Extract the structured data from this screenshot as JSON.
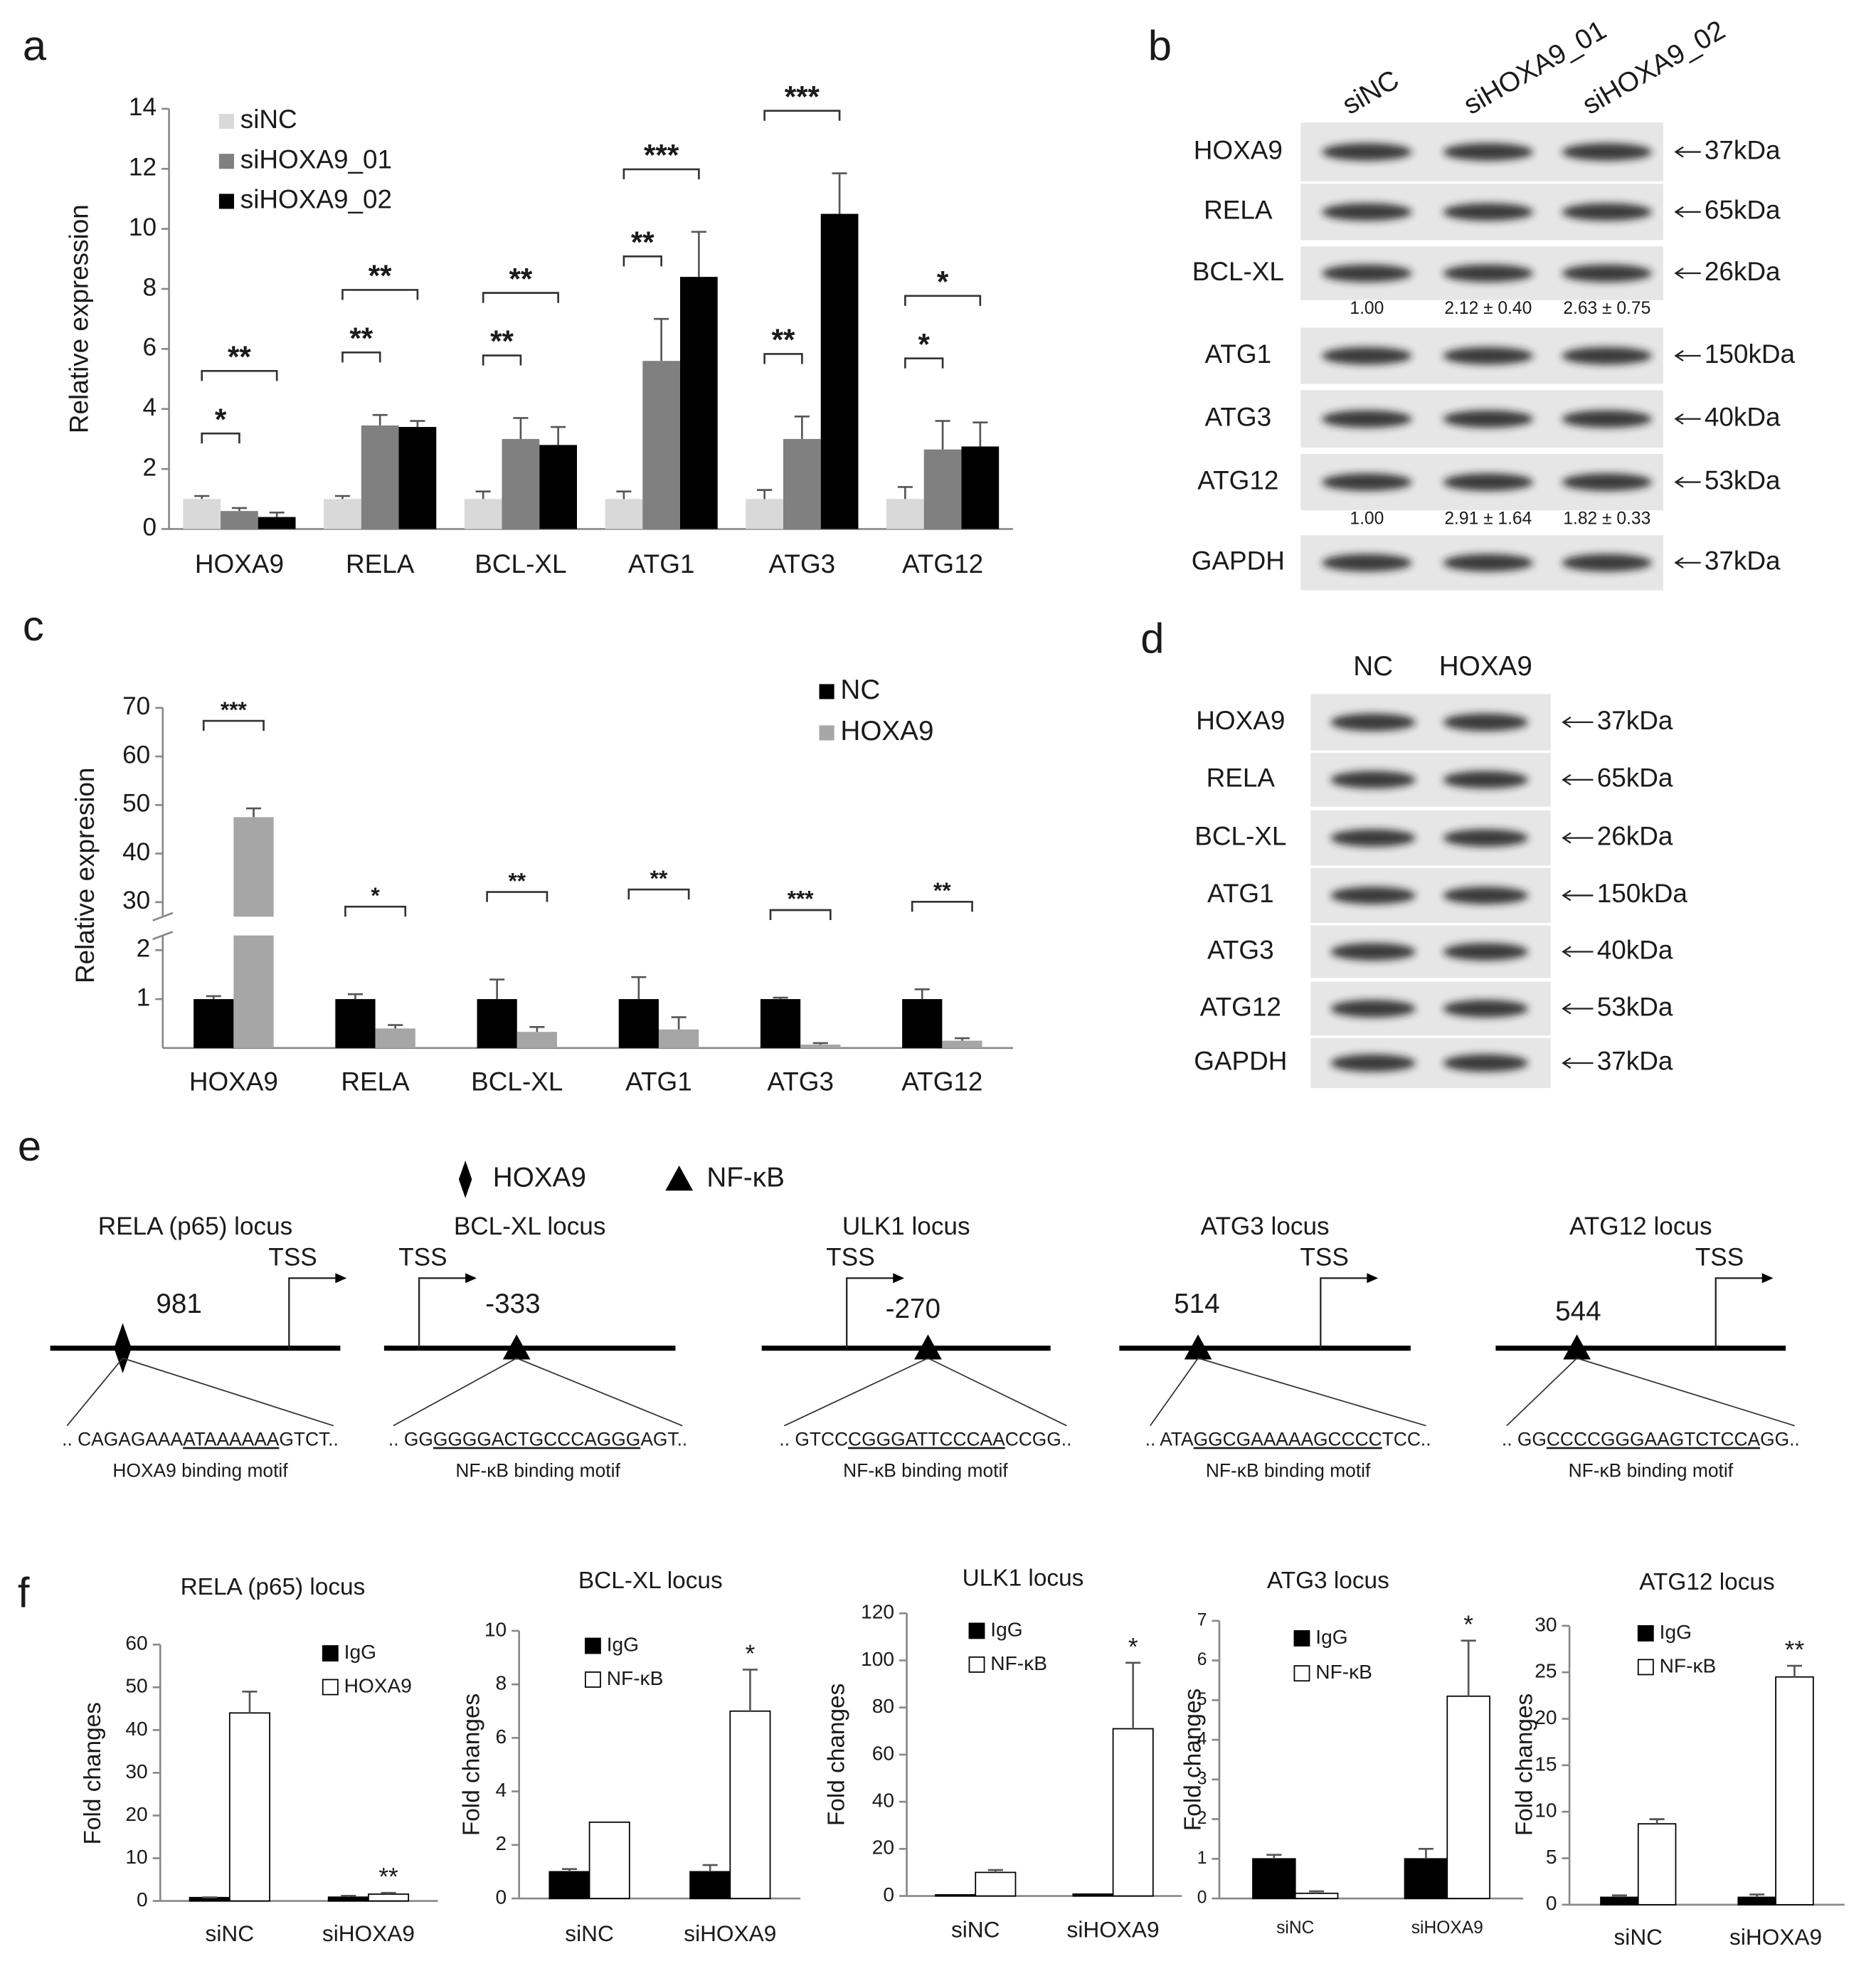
{
  "panel_labels": [
    "a",
    "b",
    "c",
    "d",
    "e",
    "f"
  ],
  "chart_data": [
    {
      "type": "bar",
      "y_label": "Relative expression",
      "categories": [
        "HOXA9",
        "RELA",
        "BCL-XL",
        "ATG1",
        "ATG3",
        "ATG12"
      ],
      "series": [
        {
          "name": "siNC",
          "color": "#d9d9d9",
          "values": [
            1,
            1,
            1,
            1,
            1,
            1
          ],
          "errors": [
            0.1,
            0.1,
            0.25,
            0.25,
            0.3,
            0.4
          ]
        },
        {
          "name": "siHOXA9_01",
          "color": "#808080",
          "values": [
            0.6,
            3.45,
            3,
            5.6,
            3,
            2.65
          ],
          "errors": [
            0.1,
            0.35,
            0.7,
            1.4,
            0.75,
            0.95
          ]
        },
        {
          "name": "siHOXA9_02",
          "color": "#000000",
          "values": [
            0.4,
            3.4,
            2.8,
            8.4,
            10.5,
            2.75
          ],
          "errors": [
            0.15,
            0.2,
            0.6,
            1.5,
            1.35,
            0.8
          ]
        }
      ],
      "annotations": [
        [
          "*",
          "**"
        ],
        [
          "**",
          "**"
        ],
        [
          "**",
          "**"
        ],
        [
          "**",
          "***"
        ],
        [
          "**",
          "***"
        ],
        [
          "*",
          "*"
        ]
      ],
      "ylim": [
        0,
        14
      ],
      "yticks": [
        0,
        2,
        4,
        6,
        8,
        10,
        12,
        14
      ],
      "legend": "upper left"
    },
    {
      "type": "bar",
      "y_label": "Relative expresion",
      "categories": [
        "HOXA9",
        "RELA",
        "BCL-XL",
        "ATG1",
        "ATG3",
        "ATG12"
      ],
      "series": [
        {
          "name": "NC",
          "color": "#000000",
          "values": [
            1,
            1,
            1,
            1,
            1,
            1
          ],
          "errors": [
            0.06,
            0.1,
            0.4,
            0.45,
            0.03,
            0.2
          ]
        },
        {
          "name": "HOXA9",
          "color": "#a6a6a6",
          "values": [
            47.5,
            0.4,
            0.33,
            0.38,
            0.07,
            0.15
          ],
          "errors": [
            1.8,
            0.07,
            0.1,
            0.25,
            0.03,
            0.05
          ]
        }
      ],
      "annotations": [
        "***",
        "*",
        "**",
        "**",
        "***",
        "**"
      ],
      "ylim": [
        0,
        70
      ],
      "ybreak": [
        2.3,
        27
      ],
      "yticks": [
        1,
        2,
        30,
        40,
        50,
        60,
        70
      ],
      "legend": "upper right"
    },
    {
      "type": "bar",
      "title": "RELA (p65)  locus",
      "y_label": "Fold changes",
      "categories": [
        "siNC",
        "siHOXA9"
      ],
      "series": [
        {
          "name": "IgG",
          "color": "#000000",
          "values": [
            0.8,
            0.9
          ],
          "errors": [
            0.05,
            0.3
          ]
        },
        {
          "name": "HOXA9",
          "color": "#ffffff",
          "values": [
            44,
            1.6
          ],
          "errors": [
            5,
            0.3
          ]
        }
      ],
      "annotations": [
        null,
        "**"
      ],
      "ylim": [
        0,
        60
      ],
      "yticks": [
        0,
        10,
        20,
        30,
        40,
        50,
        60
      ],
      "legend": "upper right"
    },
    {
      "type": "bar",
      "title": "BCL-XL locus",
      "y_label": "Fold changes",
      "categories": [
        "siNC",
        "siHOXA9"
      ],
      "series": [
        {
          "name": "IgG",
          "color": "#000000",
          "values": [
            1,
            1
          ],
          "errors": [
            0.1,
            0.25
          ]
        },
        {
          "name": "NF-κB",
          "color": "#ffffff",
          "values": [
            2.85,
            7
          ],
          "errors": [
            null,
            1.55
          ]
        }
      ],
      "annotations": [
        null,
        "*"
      ],
      "ylim": [
        0,
        10
      ],
      "yticks": [
        0,
        2,
        4,
        6,
        8,
        10
      ],
      "legend": "upper left"
    },
    {
      "type": "bar",
      "title": "ULK1  locus",
      "y_label": "Fold changes",
      "categories": [
        "siNC",
        "siHOXA9"
      ],
      "series": [
        {
          "name": "IgG",
          "color": "#000000",
          "values": [
            0.5,
            0.8
          ],
          "errors": [
            null,
            null
          ]
        },
        {
          "name": "NF-κB",
          "color": "#ffffff",
          "values": [
            10,
            71
          ],
          "errors": [
            1,
            28
          ]
        }
      ],
      "annotations": [
        null,
        "*"
      ],
      "ylim": [
        0,
        120
      ],
      "yticks": [
        0,
        20,
        40,
        60,
        80,
        100,
        120
      ],
      "legend": "upper left"
    },
    {
      "type": "bar",
      "title": "ATG3 locus",
      "y_label": "Fold changes",
      "categories": [
        "siNC",
        "siHOXA9"
      ],
      "series": [
        {
          "name": "IgG",
          "color": "#000000",
          "values": [
            1,
            1
          ],
          "errors": [
            0.1,
            0.25
          ]
        },
        {
          "name": "NF-κB",
          "color": "#ffffff",
          "values": [
            0.13,
            5.1
          ],
          "errors": [
            0.05,
            1.4
          ]
        }
      ],
      "annotations": [
        null,
        "*"
      ],
      "ylim": [
        0,
        7
      ],
      "yticks": [
        0,
        1,
        2,
        3,
        4,
        5,
        6,
        7
      ],
      "legend": "upper left"
    },
    {
      "type": "bar",
      "title": "ATG12 locus",
      "y_label": "Fold changes",
      "categories": [
        "siNC",
        "siHOXA9"
      ],
      "series": [
        {
          "name": "IgG",
          "color": "#000000",
          "values": [
            0.8,
            0.8
          ],
          "errors": [
            0.2,
            0.3
          ]
        },
        {
          "name": "NF-κB",
          "color": "#ffffff",
          "values": [
            8.7,
            24.5
          ],
          "errors": [
            0.5,
            1.2
          ]
        }
      ],
      "annotations": [
        null,
        "**"
      ],
      "ylim": [
        0,
        30
      ],
      "yticks": [
        0,
        5,
        10,
        15,
        20,
        25,
        30
      ],
      "legend": "upper left"
    }
  ],
  "blot_b": {
    "lanes": [
      "siNC",
      "siHOXA9_01",
      "siHOXA9_02"
    ],
    "rows": [
      {
        "protein": "HOXA9",
        "size": "37kDa"
      },
      {
        "protein": "RELA",
        "size": "65kDa"
      },
      {
        "protein": "BCL-XL",
        "size": "26kDa",
        "quant": [
          "1.00",
          "2.12 ± 0.40",
          "2.63 ± 0.75"
        ]
      },
      {
        "protein": "ATG1",
        "size": "150kDa"
      },
      {
        "protein": "ATG3",
        "size": "40kDa"
      },
      {
        "protein": "ATG12",
        "size": "53kDa",
        "quant": [
          "1.00",
          "2.91 ± 1.64",
          "1.82 ± 0.33"
        ]
      },
      {
        "protein": "GAPDH",
        "size": "37kDa"
      }
    ]
  },
  "blot_d": {
    "lanes": [
      "NC",
      "HOXA9"
    ],
    "rows": [
      {
        "protein": "HOXA9",
        "size": "37kDa"
      },
      {
        "protein": "RELA",
        "size": "65kDa"
      },
      {
        "protein": "BCL-XL",
        "size": "26kDa"
      },
      {
        "protein": "ATG1",
        "size": "150kDa"
      },
      {
        "protein": "ATG3",
        "size": "40kDa"
      },
      {
        "protein": "ATG12",
        "size": "53kDa"
      },
      {
        "protein": "GAPDH",
        "size": "37kDa"
      }
    ]
  },
  "loci_legend": [
    {
      "marker": "diamond",
      "label": "HOXA9"
    },
    {
      "marker": "triangle",
      "label": "NF-κB"
    }
  ],
  "loci": [
    {
      "title": "RELA (p65) locus",
      "tss": "TSS",
      "site": "981",
      "marker": "diamond",
      "sequence": [
        ".. CAGAGAAA",
        "ATAAAAAA",
        "GTCT.."
      ],
      "motif": "HOXA9 binding motif"
    },
    {
      "title": "BCL-XL locus",
      "tss": "TSS",
      "site": "-333",
      "marker": "triangle",
      "sequence": [
        ".. GG",
        "GGGGACTGCCCAGGG",
        "AGT.."
      ],
      "motif": "NF-κB binding motif"
    },
    {
      "title": "ULK1  locus",
      "tss": "TSS",
      "site": "-270",
      "marker": "triangle",
      "sequence": [
        ".. GTCC",
        "CGGGATTCCCAA",
        "CCGG.."
      ],
      "motif": "NF-κB binding motif"
    },
    {
      "title": "ATG3 locus",
      "tss": "TSS",
      "site": "514",
      "marker": "triangle",
      "sequence": [
        ".. ATA",
        "GGCGAAAAAGCCCC",
        "TCC.."
      ],
      "motif": "NF-κB binding motif"
    },
    {
      "title": "ATG12 locus",
      "tss": "TSS",
      "site": "544",
      "marker": "triangle",
      "sequence": [
        ".. GG",
        "CCCCGGGAAGTCTCCA",
        "GG.."
      ],
      "motif": "NF-κB binding motif"
    }
  ]
}
